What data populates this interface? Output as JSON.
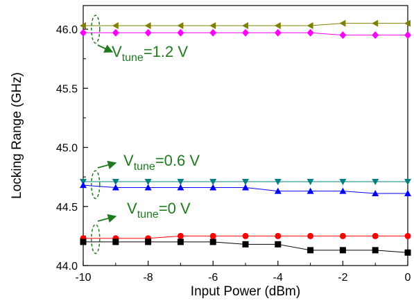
{
  "chart_data": {
    "type": "line",
    "title": "",
    "xlabel": "Input Power (dBm)",
    "ylabel": "Locking Range (GHz)",
    "xlim": [
      -10,
      0
    ],
    "ylim": [
      44.0,
      46.2
    ],
    "x_ticks": [
      -10,
      -8,
      -6,
      -4,
      -2,
      0
    ],
    "y_ticks": [
      44.0,
      44.5,
      45.0,
      45.5,
      46.0
    ],
    "x_tick_labels": [
      "-10",
      "-8",
      "-6",
      "-4",
      "-2",
      "0"
    ],
    "y_tick_labels": [
      "44.0",
      "44.5",
      "45.0",
      "45.5",
      "46.0"
    ],
    "grid": false,
    "x": [
      -10,
      -9,
      -8,
      -7,
      -6,
      -5,
      -4,
      -3,
      -2,
      -1,
      0
    ],
    "series": [
      {
        "marker": "left-triangle",
        "color": "#808000",
        "values": [
          46.03,
          46.03,
          46.03,
          46.03,
          46.03,
          46.03,
          46.03,
          46.03,
          46.05,
          46.05,
          46.05
        ]
      },
      {
        "marker": "diamond",
        "color": "#ff00ff",
        "values": [
          45.97,
          45.97,
          45.97,
          45.97,
          45.97,
          45.97,
          45.97,
          45.97,
          45.95,
          45.95,
          45.95
        ]
      },
      {
        "marker": "down-triangle",
        "color": "#008080",
        "values": [
          44.71,
          44.71,
          44.71,
          44.71,
          44.71,
          44.71,
          44.71,
          44.71,
          44.71,
          44.71,
          44.71
        ]
      },
      {
        "marker": "up-triangle",
        "color": "#0000ff",
        "values": [
          44.68,
          44.66,
          44.66,
          44.66,
          44.66,
          44.66,
          44.63,
          44.63,
          44.63,
          44.61,
          44.61
        ]
      },
      {
        "marker": "circle",
        "color": "#ff0000",
        "values": [
          44.23,
          44.23,
          44.23,
          44.25,
          44.25,
          44.25,
          44.25,
          44.25,
          44.25,
          44.25,
          44.25
        ]
      },
      {
        "marker": "square",
        "color": "#000000",
        "values": [
          44.2,
          44.2,
          44.2,
          44.2,
          44.2,
          44.18,
          44.18,
          44.13,
          44.13,
          44.13,
          44.11
        ]
      }
    ],
    "annotations": [
      {
        "text_main": "V",
        "text_sub": "tune",
        "text_value": "=1.2 V",
        "color": "#1f7a1f"
      },
      {
        "text_main": "V",
        "text_sub": "tune",
        "text_value": "=0.6 V",
        "color": "#1f7a1f"
      },
      {
        "text_main": "V",
        "text_sub": "tune",
        "text_value": "=0 V",
        "color": "#1f7a1f"
      }
    ]
  }
}
